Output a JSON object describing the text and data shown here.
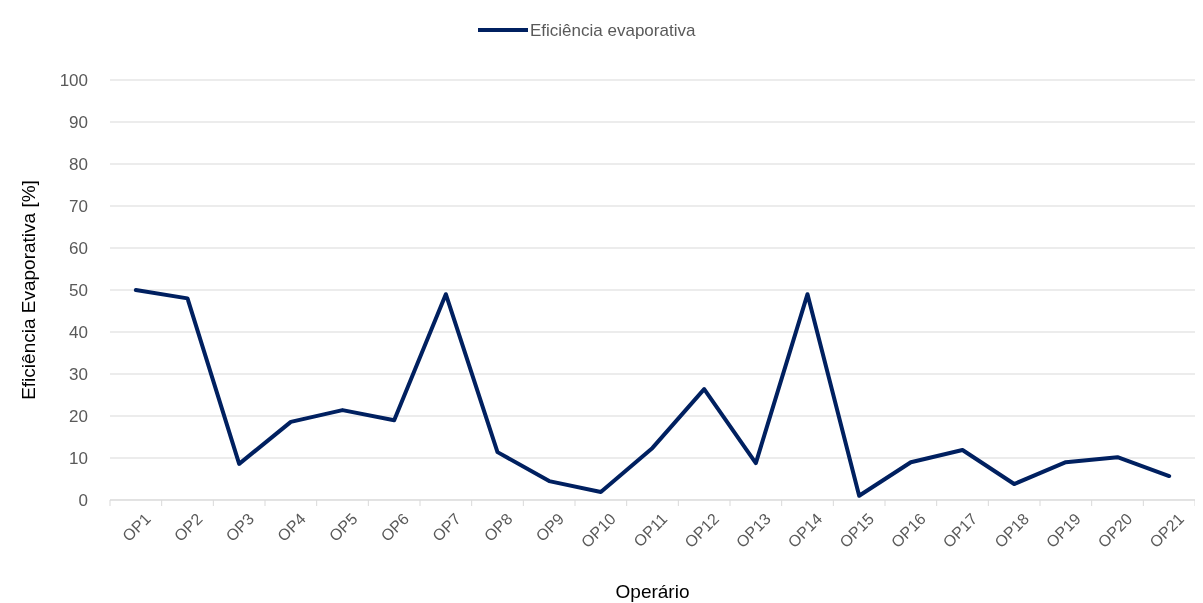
{
  "chart_data": {
    "type": "line",
    "xlabel": "Operário",
    "ylabel": "Eficiência Evaporativa [%]",
    "categories": [
      "OP1",
      "OP2",
      "OP3",
      "OP4",
      "OP5",
      "OP6",
      "OP7",
      "OP8",
      "OP9",
      "OP10",
      "OP11",
      "OP12",
      "OP13",
      "OP14",
      "OP15",
      "OP16",
      "OP17",
      "OP18",
      "OP19",
      "OP20",
      "OP21"
    ],
    "series": [
      {
        "name": "Eficiência evaporativa",
        "color": "#002060",
        "values": [
          50,
          48,
          8.6,
          18.6,
          21.4,
          19,
          49,
          11.4,
          4.5,
          1.9,
          12.4,
          26.4,
          8.8,
          49,
          1,
          9,
          11.9,
          3.8,
          9,
          10.2,
          5.7
        ]
      }
    ],
    "ylim": [
      0,
      100
    ],
    "yticks": [
      0,
      10,
      20,
      30,
      40,
      50,
      60,
      70,
      80,
      90,
      100
    ],
    "grid": "y",
    "legend": "top",
    "marker": "none",
    "line_style": "solid"
  }
}
